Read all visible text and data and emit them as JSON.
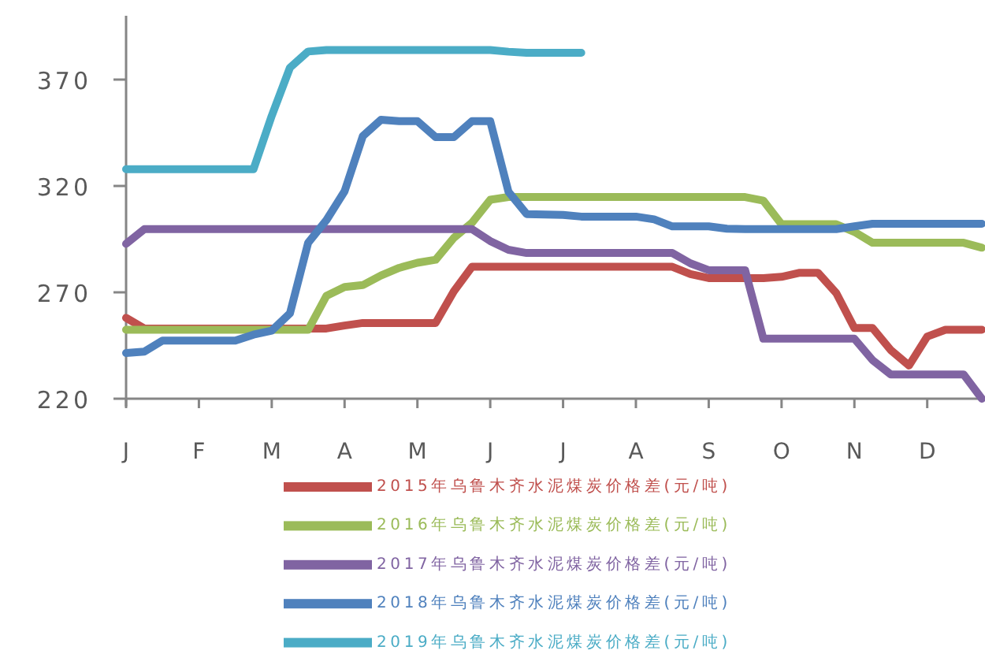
{
  "chart_data": {
    "type": "line",
    "ylim": [
      220,
      400
    ],
    "categories": [
      "J",
      null,
      null,
      null,
      "F",
      null,
      null,
      null,
      "M",
      null,
      null,
      null,
      "A",
      null,
      null,
      null,
      "M",
      null,
      null,
      null,
      "J",
      null,
      null,
      null,
      "J",
      null,
      null,
      null,
      "A",
      null,
      null,
      null,
      "S",
      null,
      null,
      null,
      "O",
      null,
      null,
      null,
      "N",
      null,
      null,
      null,
      "D",
      null,
      null,
      null
    ],
    "yticks": [
      220,
      270,
      320,
      370
    ],
    "grid": false,
    "legend": "bottom",
    "marker": "none",
    "line_style": "solid",
    "series": [
      {
        "name": "2015年乌鲁木齐水泥煤炭价格差(元/吨)",
        "color": "#c0504d",
        "values": [
          258,
          253,
          253,
          253,
          253,
          253,
          253,
          253,
          253,
          253,
          253,
          253,
          254.4,
          255.6,
          255.6,
          255.6,
          255.6,
          255.6,
          270.5,
          282,
          282,
          282,
          282,
          282,
          282,
          282,
          282,
          282,
          282,
          282,
          282,
          278.6,
          276.7,
          276.7,
          276.7,
          276.7,
          277.3,
          279.2,
          279.2,
          269.7,
          253.2,
          253.2,
          242.8,
          235.6,
          249.2,
          252.4,
          252.4,
          252.4
        ]
      },
      {
        "name": "2016年乌鲁木齐水泥煤炭价格差(元/吨)",
        "color": "#9bbb59",
        "values": [
          252.4,
          252.4,
          252.4,
          252.4,
          252.4,
          252.4,
          252.4,
          252.4,
          252.4,
          252.4,
          252.4,
          268.3,
          272.5,
          273.4,
          277.9,
          281.5,
          283.9,
          285.3,
          295.6,
          302.7,
          313.5,
          314.8,
          314.8,
          314.8,
          314.8,
          314.8,
          314.8,
          314.8,
          314.8,
          314.8,
          314.8,
          314.8,
          314.8,
          314.8,
          314.8,
          313.1,
          302,
          302,
          302,
          302,
          298.4,
          293.3,
          293.3,
          293.3,
          293.3,
          293.3,
          293.3,
          291
        ]
      },
      {
        "name": "2017年乌鲁木齐水泥煤炭价格差(元/吨)",
        "color": "#8064a2",
        "values": [
          292.8,
          299.7,
          299.7,
          299.7,
          299.7,
          299.7,
          299.7,
          299.7,
          299.7,
          299.7,
          299.7,
          299.7,
          299.7,
          299.7,
          299.7,
          299.7,
          299.7,
          299.7,
          299.7,
          299.7,
          294.1,
          290,
          288.5,
          288.5,
          288.5,
          288.5,
          288.5,
          288.5,
          288.5,
          288.5,
          288.5,
          283.6,
          280.4,
          280.4,
          280.4,
          248.2,
          248.2,
          248.2,
          248.2,
          248.2,
          248.2,
          238.1,
          231.4,
          231.4,
          231.4,
          231.4,
          231.4,
          220
        ]
      },
      {
        "name": "2018年乌鲁木齐水泥煤炭价格差(元/吨)",
        "color": "#4f81bd",
        "values": [
          241.5,
          242.1,
          247.3,
          247.3,
          247.3,
          247.3,
          247.3,
          250.1,
          252,
          260.1,
          293.3,
          303.9,
          317.5,
          343.4,
          351.1,
          350.5,
          350.5,
          343,
          343,
          350.5,
          350.5,
          317.3,
          306.8,
          306.6,
          306.4,
          305.6,
          305.6,
          305.6,
          305.6,
          304.3,
          301,
          301,
          301,
          299.9,
          299.7,
          299.7,
          299.7,
          299.7,
          299.7,
          299.7,
          301,
          302.2,
          302.2,
          302.2,
          302.2,
          302.2,
          302.2,
          302.2
        ]
      },
      {
        "name": "2019年乌鲁木齐水泥煤炭价格差(元/吨)",
        "color": "#4bacc6",
        "values": [
          327.9,
          327.9,
          327.9,
          327.9,
          327.9,
          327.9,
          327.9,
          327.9,
          353,
          375.6,
          383.2,
          383.9,
          383.9,
          383.9,
          383.9,
          383.9,
          383.9,
          383.9,
          383.9,
          383.9,
          383.9,
          383.1,
          382.6,
          382.6,
          382.6,
          382.6,
          null,
          null,
          null,
          null,
          null,
          null,
          null,
          null,
          null,
          null,
          null,
          null,
          null,
          null,
          null,
          null,
          null,
          null,
          null,
          null,
          null,
          null
        ]
      }
    ]
  }
}
